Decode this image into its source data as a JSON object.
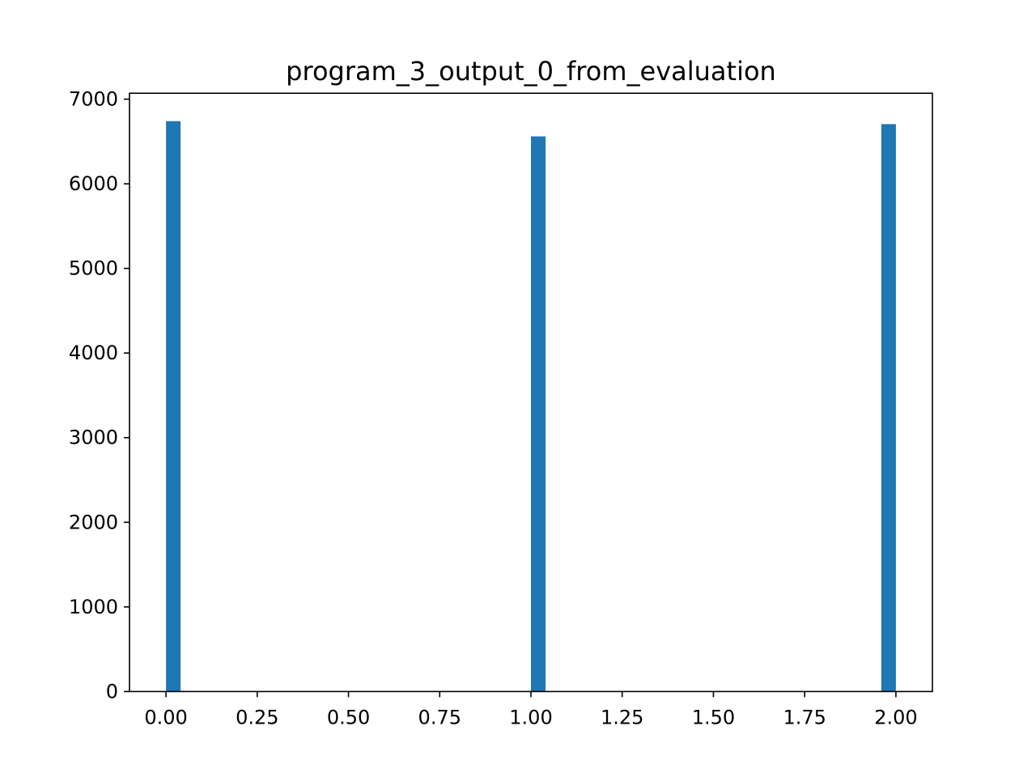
{
  "chart_data": {
    "type": "bar",
    "title": "program_3_output_0_from_evaluation",
    "xlabel": "",
    "ylabel": "",
    "xlim": [
      -0.1,
      2.1
    ],
    "ylim": [
      0,
      7070
    ],
    "xticks": [
      "0.00",
      "0.25",
      "0.50",
      "0.75",
      "1.00",
      "1.25",
      "1.50",
      "1.75",
      "2.00"
    ],
    "yticks": [
      "0",
      "1000",
      "2000",
      "3000",
      "4000",
      "5000",
      "6000",
      "7000"
    ],
    "bin_width": 0.04,
    "bars": [
      {
        "x": 0.0,
        "value": 6740
      },
      {
        "x": 1.0,
        "value": 6560
      },
      {
        "x": 1.96,
        "value": 6705
      }
    ],
    "bar_color": "#1f77b4",
    "grid": false,
    "legend": "none"
  }
}
